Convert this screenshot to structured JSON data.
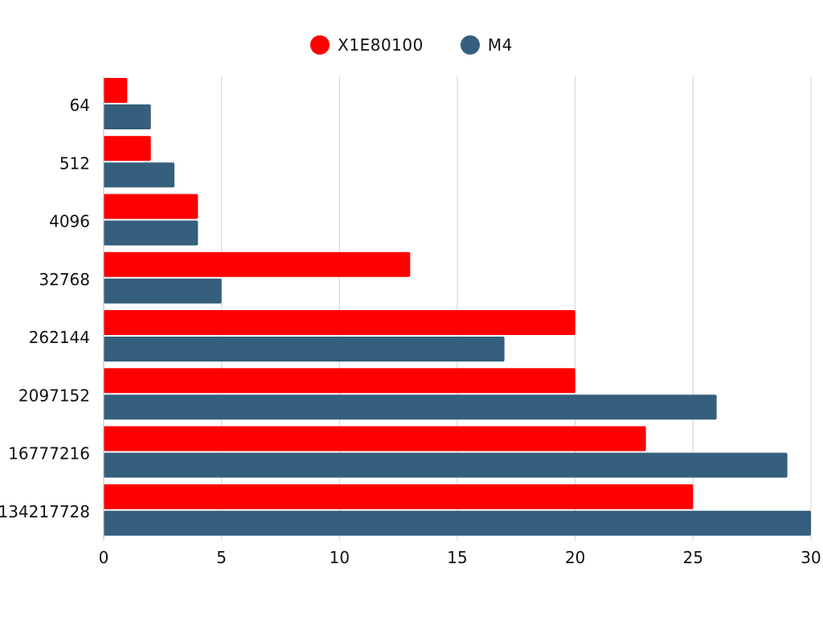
{
  "chart_data": {
    "type": "bar",
    "orientation": "horizontal",
    "categories": [
      "64",
      "512",
      "4096",
      "32768",
      "262144",
      "2097152",
      "16777216",
      "134217728"
    ],
    "series": [
      {
        "name": "X1E80100",
        "color": "#ff0000",
        "values": [
          1,
          2,
          4,
          13,
          20,
          20,
          23,
          25
        ]
      },
      {
        "name": "M4",
        "color": "#355f7d",
        "values": [
          2,
          3,
          4,
          5,
          17,
          26,
          29,
          30
        ]
      }
    ],
    "xlim": [
      0,
      30
    ],
    "xticks": [
      "0",
      "5",
      "10",
      "15",
      "20",
      "25",
      "30"
    ],
    "grid": "vertical",
    "legend": "top-center",
    "title": "",
    "xlabel": "",
    "ylabel": ""
  }
}
